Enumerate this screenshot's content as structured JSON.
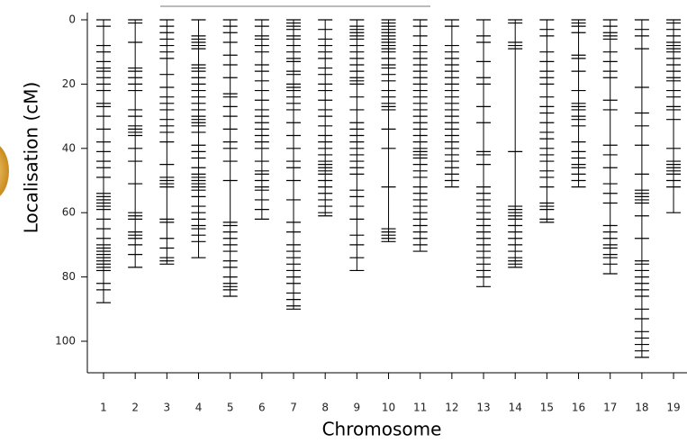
{
  "chart_data": {
    "type": "genetic-map",
    "x_label": "Chromosome",
    "y_label": "Localisation (cM)",
    "categories": [
      "1",
      "2",
      "3",
      "4",
      "5",
      "6",
      "7",
      "8",
      "9",
      "10",
      "11",
      "12",
      "13",
      "14",
      "15",
      "16",
      "17",
      "18",
      "19"
    ],
    "markers": [
      [
        0,
        2,
        8,
        10,
        13,
        15,
        16,
        18,
        20,
        22,
        26,
        27,
        30,
        34,
        38,
        41,
        44,
        46,
        49,
        54,
        55,
        56,
        57,
        58,
        59,
        62,
        65,
        68,
        70,
        71,
        72,
        73,
        74,
        75,
        76,
        77,
        78,
        82,
        84,
        88
      ],
      [
        0,
        1,
        7,
        15,
        16,
        18,
        20,
        22,
        28,
        30,
        33,
        34,
        35,
        36,
        40,
        44,
        51,
        60,
        61,
        62,
        66,
        67,
        68,
        70,
        73,
        77
      ],
      [
        0,
        2,
        4,
        6,
        8,
        10,
        12,
        17,
        21,
        24,
        26,
        28,
        31,
        33,
        35,
        38,
        45,
        49,
        50,
        51,
        52,
        62,
        63,
        68,
        71,
        74,
        75,
        76
      ],
      [
        0,
        5,
        6,
        7,
        8,
        9,
        14,
        15,
        16,
        18,
        20,
        22,
        24,
        26,
        28,
        30,
        31,
        32,
        33,
        35,
        39,
        41,
        43,
        46,
        48,
        49,
        50,
        51,
        52,
        53,
        55,
        58,
        60,
        62,
        64,
        65,
        67,
        69,
        74
      ],
      [
        0,
        2,
        4,
        7,
        11,
        14,
        18,
        23,
        24,
        27,
        30,
        34,
        38,
        40,
        44,
        50,
        63,
        64,
        66,
        68,
        70,
        72,
        75,
        77,
        80,
        82,
        83,
        84,
        86
      ],
      [
        0,
        2,
        5,
        6,
        8,
        10,
        14,
        16,
        19,
        22,
        25,
        28,
        30,
        32,
        34,
        36,
        38,
        40,
        44,
        47,
        48,
        50,
        52,
        53,
        56,
        59,
        62
      ],
      [
        0,
        1,
        2,
        3,
        5,
        6,
        8,
        10,
        12,
        13,
        16,
        17,
        20,
        21,
        22,
        24,
        26,
        28,
        32,
        36,
        40,
        44,
        46,
        50,
        56,
        63,
        66,
        70,
        72,
        74,
        76,
        78,
        80,
        82,
        85,
        87,
        89,
        90
      ],
      [
        0,
        3,
        6,
        8,
        10,
        12,
        15,
        17,
        20,
        22,
        25,
        28,
        30,
        33,
        36,
        38,
        40,
        42,
        44,
        45,
        46,
        47,
        48,
        50,
        52,
        54,
        56,
        58,
        60,
        61
      ],
      [
        0,
        2,
        3,
        4,
        5,
        6,
        8,
        10,
        12,
        14,
        16,
        18,
        19,
        20,
        24,
        28,
        32,
        34,
        36,
        38,
        40,
        42,
        44,
        46,
        48,
        53,
        55,
        58,
        62,
        67,
        70,
        74,
        78
      ],
      [
        0,
        1,
        2,
        3,
        4,
        5,
        6,
        7,
        8,
        9,
        10,
        12,
        14,
        15,
        17,
        19,
        22,
        24,
        26,
        27,
        28,
        34,
        40,
        52,
        65,
        66,
        67,
        68,
        69
      ],
      [
        0,
        2,
        5,
        8,
        10,
        12,
        14,
        16,
        18,
        20,
        22,
        24,
        26,
        28,
        30,
        32,
        34,
        36,
        38,
        40,
        41,
        42,
        43,
        45,
        47,
        49,
        52,
        54,
        56,
        58,
        60,
        62,
        64,
        66,
        68,
        70,
        72
      ],
      [
        0,
        2,
        8,
        10,
        12,
        14,
        16,
        18,
        20,
        22,
        24,
        26,
        28,
        30,
        32,
        34,
        36,
        38,
        40,
        42,
        44,
        46,
        48,
        50,
        52
      ],
      [
        0,
        5,
        7,
        13,
        18,
        20,
        27,
        32,
        41,
        42,
        45,
        52,
        54,
        56,
        58,
        60,
        62,
        64,
        66,
        68,
        70,
        72,
        74,
        76,
        78,
        80,
        83
      ],
      [
        0,
        1,
        7,
        8,
        9,
        41,
        58,
        59,
        60,
        61,
        62,
        64,
        66,
        68,
        70,
        72,
        74,
        75,
        76,
        77
      ],
      [
        0,
        3,
        5,
        10,
        13,
        16,
        18,
        20,
        24,
        27,
        29,
        32,
        35,
        37,
        40,
        42,
        44,
        47,
        49,
        52,
        57,
        58,
        59,
        62,
        63
      ],
      [
        0,
        1,
        2,
        4,
        11,
        12,
        16,
        22,
        26,
        27,
        28,
        30,
        31,
        33,
        38,
        41,
        43,
        45,
        46,
        48,
        50,
        52
      ],
      [
        0,
        2,
        4,
        5,
        6,
        10,
        13,
        16,
        18,
        25,
        28,
        39,
        42,
        46,
        51,
        54,
        57,
        64,
        66,
        68,
        70,
        71,
        73,
        74,
        76,
        79
      ],
      [
        0,
        3,
        5,
        9,
        21,
        29,
        33,
        39,
        48,
        53,
        54,
        55,
        56,
        57,
        61,
        68,
        75,
        76,
        78,
        80,
        82,
        84,
        86,
        90,
        93,
        97,
        99,
        101,
        103,
        105
      ],
      [
        0,
        1,
        3,
        5,
        7,
        8,
        9,
        10,
        12,
        14,
        16,
        18,
        19,
        22,
        24,
        27,
        28,
        31,
        40,
        44,
        45,
        46,
        47,
        48,
        50,
        52,
        60
      ]
    ],
    "color": "#000000",
    "ylim": [
      0,
      110
    ],
    "y_inverted": true,
    "yticks": [
      0,
      20,
      40,
      60,
      80,
      100
    ]
  }
}
